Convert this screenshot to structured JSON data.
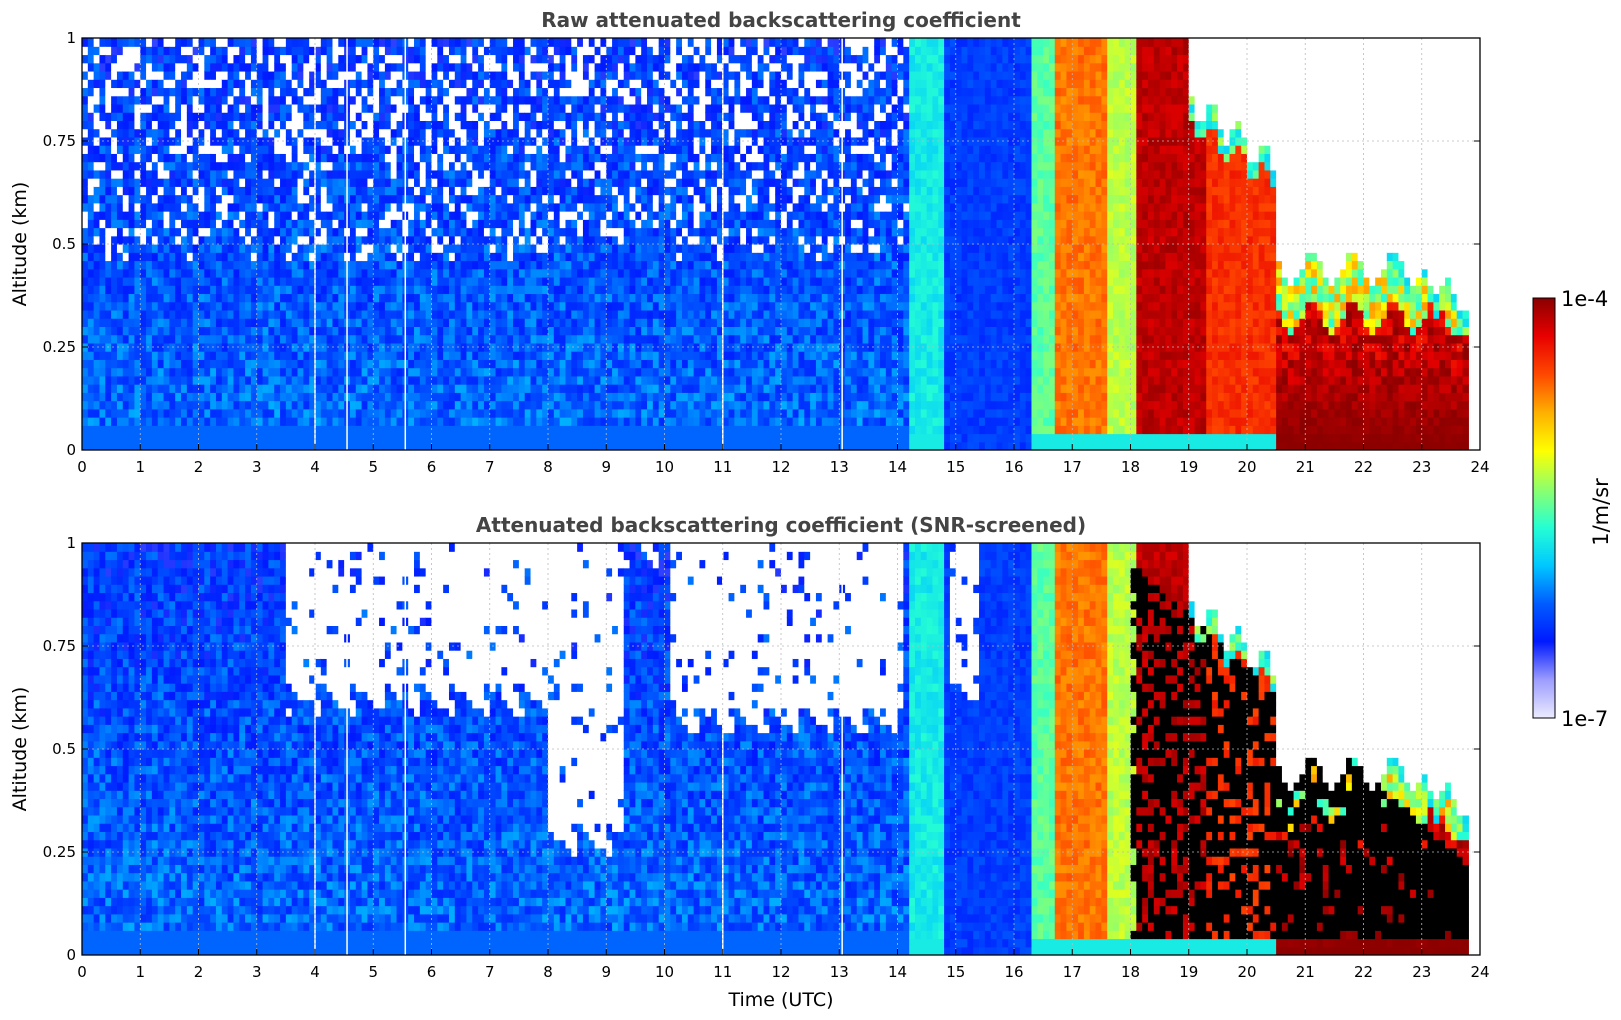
{
  "figure": {
    "xlabel": "Time (UTC)",
    "colorbar": {
      "label": "1/m/sr",
      "max_label": "1e-4",
      "min_label": "1e-7",
      "scale": "log",
      "range": [
        1e-07,
        0.0001
      ],
      "colormap": "jet",
      "colors": [
        "#ecebff",
        "#9c9cff",
        "#0019ff",
        "#005cff",
        "#00c8ff",
        "#26ffd3",
        "#8fff6c",
        "#ffff00",
        "#ffb000",
        "#ff4800",
        "#e80000",
        "#8b0000"
      ]
    }
  },
  "chart_data": [
    {
      "type": "heatmap",
      "title": "Raw attenuated backscattering coefficient",
      "ylabel": "Altitude (km)",
      "xlabel": "",
      "xlim": [
        0,
        24
      ],
      "ylim": [
        0,
        1
      ],
      "x_ticks": [
        "0",
        "1",
        "2",
        "3",
        "4",
        "5",
        "6",
        "7",
        "8",
        "9",
        "10",
        "11",
        "12",
        "13",
        "14",
        "15",
        "16",
        "17",
        "18",
        "19",
        "20",
        "21",
        "22",
        "23",
        "24"
      ],
      "y_ticks": [
        "0",
        "0.25",
        "0.5",
        "0.75",
        "1"
      ],
      "grid": true,
      "data_gaps_utc": [
        4.0,
        4.55,
        5.55,
        11.0,
        13.05
      ],
      "segments": [
        {
          "x": [
            0,
            14.2
          ],
          "regime": "clear-noisy",
          "level": 0.22
        },
        {
          "x": [
            14.2,
            14.85
          ],
          "regime": "cloud",
          "level": 0.42
        },
        {
          "x": [
            14.85,
            16.3
          ],
          "regime": "clear",
          "level": 0.24
        },
        {
          "x": [
            16.3,
            16.75
          ],
          "regime": "cloud",
          "level": 0.5
        },
        {
          "x": [
            16.75,
            17.6
          ],
          "regime": "dense-cloud",
          "level": 0.78
        },
        {
          "x": [
            17.6,
            18.1
          ],
          "regime": "cloud",
          "level": 0.58
        },
        {
          "x": [
            18.1,
            19.3
          ],
          "regime": "precip",
          "level": 0.95
        },
        {
          "x": [
            19.3,
            20.5
          ],
          "regime": "precip",
          "level": 0.85
        },
        {
          "x": [
            20.5,
            23.8
          ],
          "regime": "low-layer",
          "top_km": 0.32,
          "level": 1.0
        }
      ],
      "clear_air_above": {
        "x": [
          19.0,
          23.8
        ],
        "top_km_start": 0.85,
        "top_km_end": 0.35
      }
    },
    {
      "type": "heatmap",
      "title": "Attenuated backscattering coefficient (SNR-screened)",
      "ylabel": "Altitude (km)",
      "xlabel": "Time (UTC)",
      "xlim": [
        0,
        24
      ],
      "ylim": [
        0,
        1
      ],
      "x_ticks": [
        "0",
        "1",
        "2",
        "3",
        "4",
        "5",
        "6",
        "7",
        "8",
        "9",
        "10",
        "11",
        "12",
        "13",
        "14",
        "15",
        "16",
        "17",
        "18",
        "19",
        "20",
        "21",
        "22",
        "23",
        "24"
      ],
      "y_ticks": [
        "0",
        "0.25",
        "0.5",
        "0.75",
        "1"
      ],
      "grid": true,
      "data_gaps_utc": [
        4.0,
        4.55,
        5.55,
        11.0,
        13.05
      ],
      "screened_regions": [
        {
          "x": [
            3.5,
            8.0
          ],
          "bottom_km": 0.62
        },
        {
          "x": [
            8.0,
            9.3
          ],
          "bottom_km": 0.28
        },
        {
          "x": [
            9.3,
            10.1
          ],
          "bottom_km": 0.98
        },
        {
          "x": [
            10.1,
            14.1
          ],
          "bottom_km": 0.57
        },
        {
          "x": [
            14.9,
            15.4
          ],
          "bottom_km": 0.65
        }
      ],
      "screened_above": {
        "x": [
          19.0,
          23.8
        ],
        "top_km_start": 0.85,
        "top_km_end": 0.35
      },
      "attenuated_black": {
        "x": [
          18.0,
          23.8
        ],
        "top_km_start": 0.95,
        "top_km_end": 0.22
      }
    }
  ]
}
